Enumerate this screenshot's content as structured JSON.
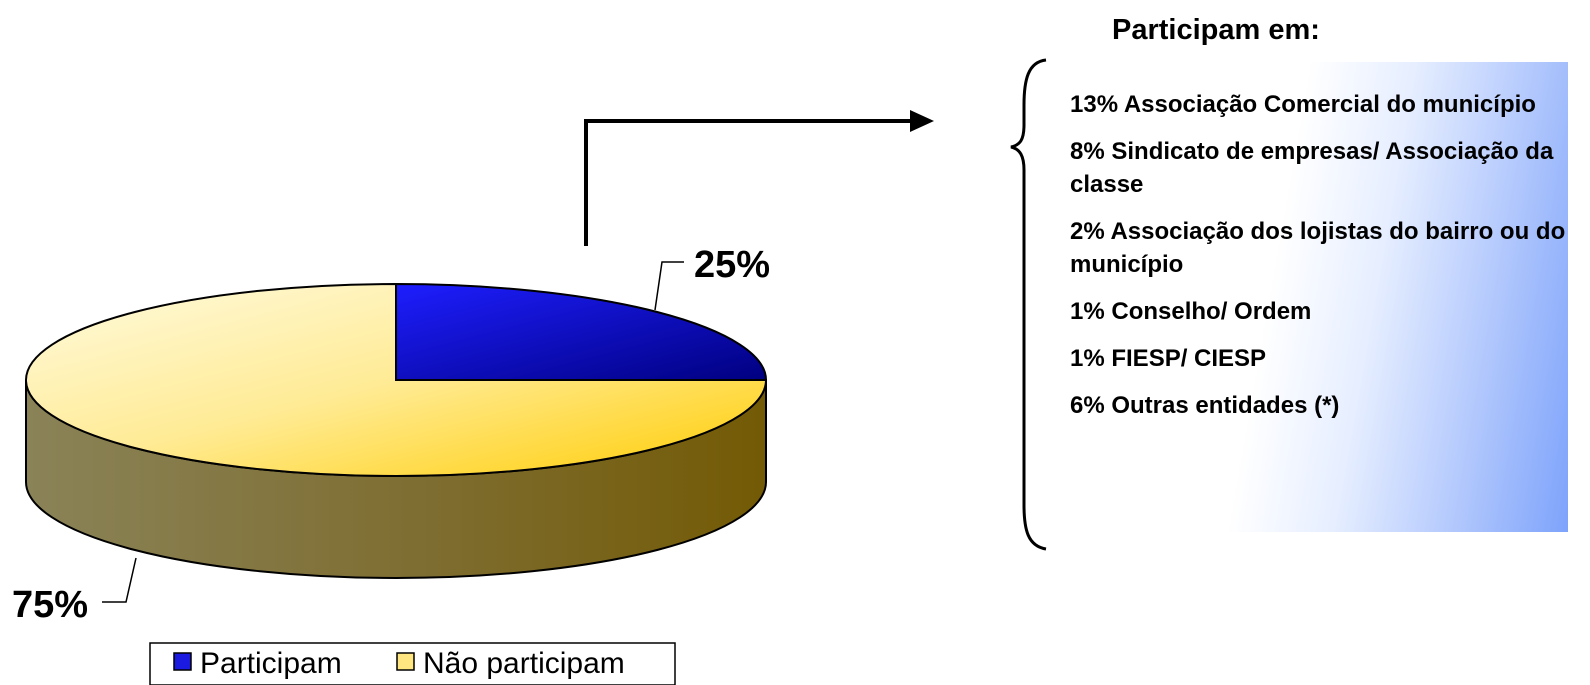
{
  "chart_data": {
    "type": "pie",
    "style": "3d",
    "slices": [
      {
        "name": "Participam",
        "value": 25,
        "label": "25%",
        "color": "#1a1ae0"
      },
      {
        "name": "Não participam",
        "value": 75,
        "label": "75%",
        "color": "#ffd84a"
      }
    ],
    "legend": {
      "placement": "bottom",
      "entries": [
        "Participam",
        "Não participam"
      ]
    }
  },
  "breakdown": {
    "title": "Participam em:",
    "items": [
      {
        "label": "13% Associação Comercial do município",
        "value": 13
      },
      {
        "label": "8% Sindicato de empresas/ Associação da classe",
        "value": 8
      },
      {
        "label": "2% Associação dos lojistas do bairro ou do município",
        "value": 2
      },
      {
        "label": "1% Conselho/ Ordem",
        "value": 1
      },
      {
        "label": "1% FIESP/ CIESP",
        "value": 1
      },
      {
        "label": "6% Outras entidades (*)",
        "value": 6
      }
    ]
  }
}
